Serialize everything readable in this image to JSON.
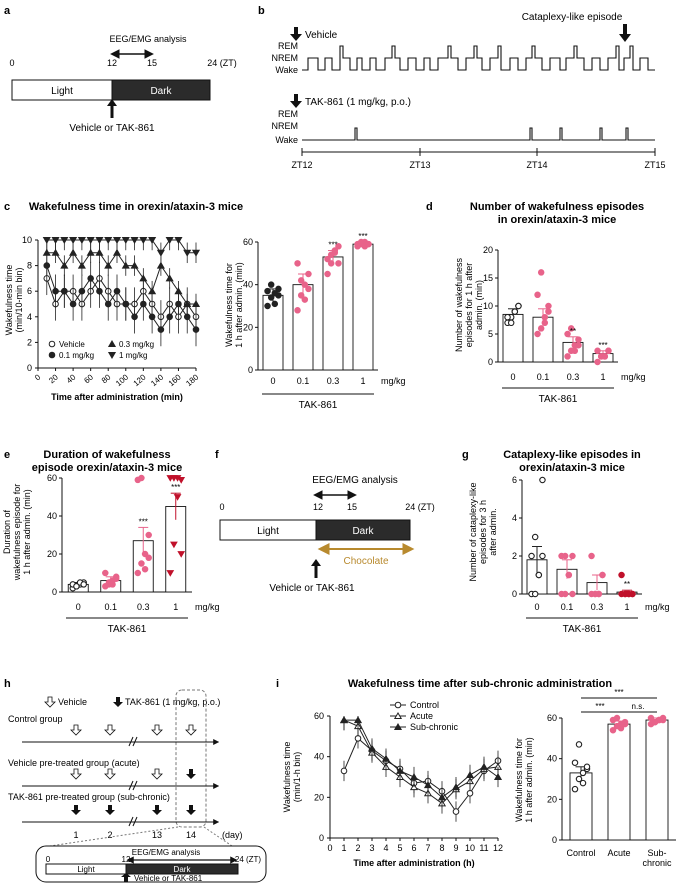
{
  "panel_labels": {
    "a": "a",
    "b": "b",
    "c": "c",
    "d": "d",
    "e": "e",
    "f": "f",
    "g": "g",
    "h": "h",
    "i": "i"
  },
  "colors": {
    "dark": "#2b2b2b",
    "pink": "#e8638a",
    "red": "#c0112b",
    "chocolate": "#b88a2e",
    "grey": "#888888"
  },
  "panel_a": {
    "title": "EEG/EMG analysis",
    "ticks": [
      "0",
      "12",
      "15",
      "24 (ZT)"
    ],
    "light": "Light",
    "dark": "Dark",
    "arrow_label": "Vehicle or TAK-861"
  },
  "panel_b": {
    "cataplexy": "Cataplexy-like episode",
    "vehicle": "Vehicle",
    "tak": "TAK-861 (1 mg/kg, p.o.)",
    "states": [
      "REM",
      "NREM",
      "Wake"
    ],
    "zt_labels": [
      "ZT12",
      "ZT13",
      "ZT14",
      "ZT15"
    ]
  },
  "panel_e": {
    "ylabel1": "Duration of",
    "ylabel2": "wakefulness episode for",
    "ylabel3": "1 h after admin. (min)"
  },
  "panel_f": {
    "title": "EEG/EMG analysis",
    "ticks": [
      "0",
      "12",
      "15",
      "24 (ZT)"
    ],
    "light": "Light",
    "dark": "Dark",
    "chocolate": "Chocolate",
    "arrow_label": "Vehicle or TAK-861"
  },
  "panel_g": {
    "ylabel1": "Number of cataplexy-like",
    "ylabel2": "episodes for 3 h",
    "ylabel3": "after admin."
  },
  "panel_h": {
    "legend_vehicle": "Vehicle",
    "legend_tak": "TAK-861 (1 mg/kg, p.o.)",
    "groups": [
      "Control group",
      "Vehicle pre-treated group (acute)",
      "TAK-861 pre-treated group (sub-chronic)"
    ],
    "days": [
      "1",
      "2",
      "13",
      "14"
    ],
    "day_unit": "(day)",
    "inset_title": "EEG/EMG analysis",
    "inset_ticks": [
      "0",
      "12",
      "24 (ZT)"
    ],
    "inset_light": "Light",
    "inset_dark": "Dark",
    "inset_arrow": "Vehicle or TAK-861"
  },
  "chart_data": [
    {
      "id": "c-left",
      "type": "line",
      "title": "Wakefulness time in orexin/ataxin-3 mice",
      "xlabel": "Time after administration (min)",
      "ylabel": "Wakefulness time (min/10-min bin)",
      "xlim": [
        0,
        180
      ],
      "ylim": [
        0,
        10
      ],
      "x": [
        10,
        20,
        30,
        40,
        50,
        60,
        70,
        80,
        90,
        100,
        110,
        120,
        130,
        140,
        150,
        160,
        170,
        180
      ],
      "series": [
        {
          "name": "Vehicle",
          "marker": "circle-open",
          "values": [
            7,
            5,
            6,
            6,
            5,
            6,
            7,
            6,
            5,
            5,
            5,
            6,
            5,
            4,
            5,
            4,
            5,
            4
          ]
        },
        {
          "name": "0.1 mg/kg",
          "marker": "circle-filled",
          "values": [
            8,
            6,
            6,
            5,
            6,
            7,
            6,
            5,
            6,
            5,
            4,
            5,
            4,
            3,
            4,
            5,
            4,
            3
          ]
        },
        {
          "name": "0.3 mg/kg",
          "marker": "triangle-up",
          "values": [
            9,
            9,
            8,
            9,
            8,
            9,
            9,
            8,
            9,
            8,
            8,
            7,
            6,
            8,
            7,
            6,
            5,
            5
          ]
        },
        {
          "name": "1 mg/kg",
          "marker": "triangle-down",
          "values": [
            10,
            10,
            10,
            10,
            10,
            10,
            10,
            10,
            10,
            10,
            10,
            10,
            10,
            9,
            10,
            10,
            9,
            9
          ]
        }
      ]
    },
    {
      "id": "c-right",
      "type": "bar",
      "ylabel": "Wakefulness time for 1 h after admin. (min)",
      "group_label": "TAK-861",
      "unit": "mg/kg",
      "categories": [
        "0",
        "0.1",
        "0.3",
        "1"
      ],
      "values": [
        35,
        40,
        53,
        59
      ],
      "errors": [
        3,
        5,
        3,
        1
      ],
      "ylim": [
        0,
        60
      ],
      "significance": [
        "",
        "",
        "***",
        "***"
      ],
      "points": [
        [
          30,
          34,
          36,
          38,
          37,
          40,
          31,
          35
        ],
        [
          28,
          35,
          40,
          45,
          50,
          42,
          33,
          38
        ],
        [
          45,
          50,
          55,
          58,
          52,
          54,
          56,
          50
        ],
        [
          58,
          59,
          60,
          59,
          59,
          60,
          58,
          59
        ]
      ]
    },
    {
      "id": "d",
      "type": "bar",
      "title": "Number of wakefulness episodes in orexin/ataxin-3 mice",
      "ylabel": "Number of wakefulness episodes for 1 h after admin. (min)",
      "group_label": "TAK-861",
      "unit": "mg/kg",
      "categories": [
        "0",
        "0.1",
        "0.3",
        "1"
      ],
      "values": [
        8.5,
        8,
        3.5,
        1.5
      ],
      "errors": [
        1,
        1.5,
        1,
        0.5
      ],
      "ylim": [
        0,
        20
      ],
      "significance": [
        "",
        "",
        "**",
        "***"
      ],
      "points": [
        [
          7,
          8,
          9,
          10,
          8,
          7,
          9,
          10
        ],
        [
          5,
          6,
          8,
          10,
          12,
          16,
          7,
          9
        ],
        [
          1,
          2,
          3,
          4,
          5,
          6,
          2,
          3
        ],
        [
          0,
          1,
          1,
          2,
          2,
          1,
          1,
          2
        ]
      ]
    },
    {
      "id": "e",
      "type": "bar",
      "title": "Duration of wakefulness episode orexin/ataxin-3 mice",
      "group_label": "TAK-861",
      "unit": "mg/kg",
      "categories": [
        "0",
        "0.1",
        "0.3",
        "1"
      ],
      "values": [
        4,
        6,
        27,
        45
      ],
      "errors": [
        1,
        2,
        7,
        7
      ],
      "ylim": [
        0,
        60
      ],
      "significance": [
        "",
        "",
        "***",
        "***"
      ],
      "points": [
        [
          2,
          3,
          4,
          5,
          4,
          3,
          5,
          4
        ],
        [
          3,
          4,
          6,
          8,
          10,
          5,
          4,
          7
        ],
        [
          10,
          15,
          20,
          30,
          59,
          60,
          12,
          18
        ],
        [
          10,
          25,
          50,
          59,
          60,
          60,
          60,
          20
        ]
      ]
    },
    {
      "id": "g",
      "type": "bar",
      "title": "Cataplexy-like episodes in orexin/ataxin-3 mice",
      "group_label": "TAK-861",
      "unit": "mg/kg",
      "categories": [
        "0",
        "0.1",
        "0.3",
        "1"
      ],
      "values": [
        1.8,
        1.3,
        0.6,
        0.1
      ],
      "errors": [
        0.7,
        0.5,
        0.4,
        0.1
      ],
      "ylim": [
        0,
        6
      ],
      "significance": [
        "",
        "",
        "",
        "**"
      ],
      "points": [
        [
          0,
          0,
          1,
          2,
          2,
          3,
          1,
          6
        ],
        [
          0,
          0,
          1,
          2,
          2,
          2,
          1,
          0
        ],
        [
          0,
          0,
          0,
          1,
          2,
          0,
          0,
          1
        ],
        [
          0,
          0,
          0,
          0,
          1,
          0,
          0,
          0
        ]
      ]
    },
    {
      "id": "i-left",
      "type": "line",
      "title": "Wakefulness time after sub-chronic administration",
      "xlabel": "Time after administration (h)",
      "ylabel": "Wakefulness time (min/1-h bin)",
      "xlim": [
        0,
        12
      ],
      "ylim": [
        0,
        60
      ],
      "x": [
        1,
        2,
        3,
        4,
        5,
        6,
        7,
        8,
        9,
        10,
        11,
        12
      ],
      "series": [
        {
          "name": "Control",
          "marker": "circle-open",
          "values": [
            33,
            49,
            43,
            38,
            34,
            27,
            28,
            23,
            13,
            22,
            33,
            38
          ]
        },
        {
          "name": "Acute",
          "marker": "triangle-open",
          "values": [
            58,
            55,
            42,
            35,
            30,
            25,
            22,
            17,
            24,
            28,
            34,
            35
          ]
        },
        {
          "name": "Sub-chronic",
          "marker": "triangle-filled",
          "values": [
            58,
            58,
            44,
            39,
            33,
            30,
            26,
            20,
            25,
            31,
            35,
            30
          ]
        }
      ]
    },
    {
      "id": "i-right",
      "type": "bar",
      "ylabel": "Wakefulness time for 1 h after admin. (min)",
      "categories": [
        "Control",
        "Acute",
        "Sub-\nchronic"
      ],
      "values": [
        33,
        57,
        59
      ],
      "errors": [
        3,
        1.5,
        1
      ],
      "ylim": [
        0,
        60
      ],
      "significance": [
        {
          "pair": [
            0,
            1
          ],
          "label": "***"
        },
        {
          "pair": [
            1,
            2
          ],
          "label": "n.s."
        },
        {
          "pair": [
            0,
            2
          ],
          "label": "***"
        }
      ],
      "points": [
        [
          25,
          30,
          33,
          35,
          38,
          47,
          28,
          36
        ],
        [
          54,
          56,
          57,
          58,
          59,
          60,
          55,
          57
        ],
        [
          57,
          58,
          59,
          60,
          60,
          58,
          59,
          59
        ]
      ]
    }
  ]
}
